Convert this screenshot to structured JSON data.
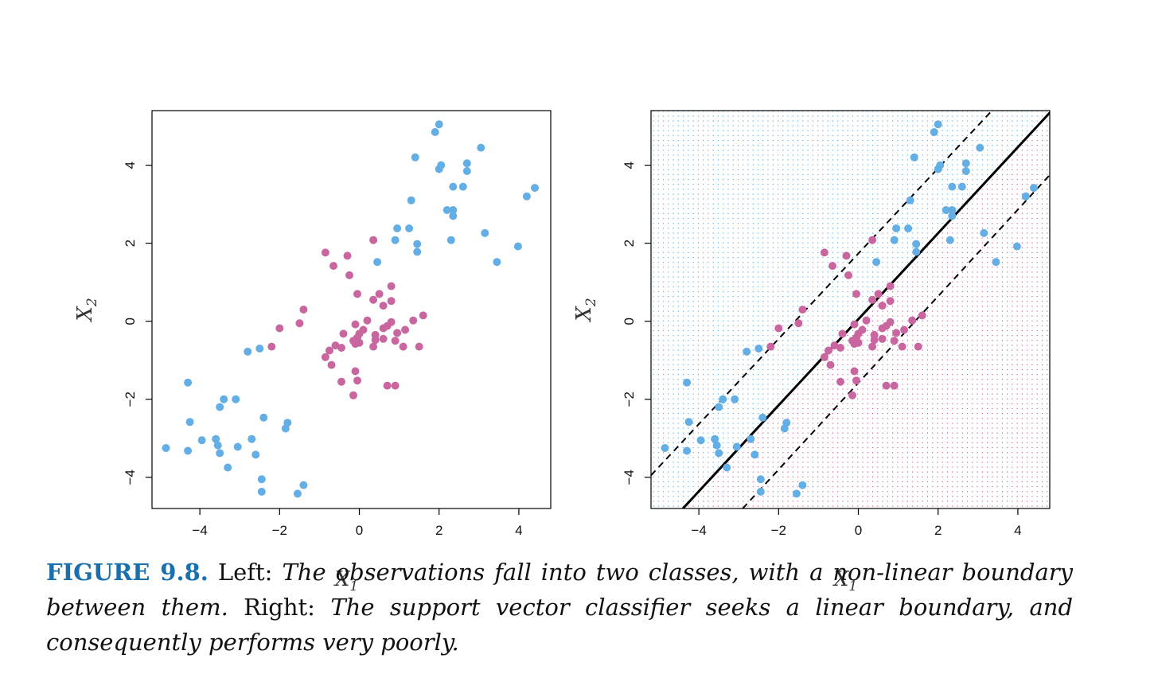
{
  "chart_data": [
    {
      "panel": "left",
      "type": "scatter",
      "xlabel": "X",
      "xlabel_sub": "1",
      "ylabel": "X",
      "ylabel_sub": "2",
      "xlim": [
        -5.2,
        4.8
      ],
      "ylim": [
        -4.8,
        5.4
      ],
      "xticks": [
        -4,
        -2,
        0,
        2,
        4
      ],
      "xtick_labels": [
        "−4",
        "−2",
        "0",
        "2",
        "4"
      ],
      "yticks": [
        -4,
        -2,
        0,
        2,
        4
      ],
      "ytick_labels": [
        "−4",
        "−2",
        "0",
        "2",
        "4"
      ],
      "grid": false,
      "legend": "none",
      "series": [
        {
          "class": "blue",
          "color": "#63aee5",
          "points": [
            [
              2.0,
              5.05
            ],
            [
              1.9,
              4.85
            ],
            [
              3.05,
              4.45
            ],
            [
              1.4,
              4.2
            ],
            [
              2.05,
              4.0
            ],
            [
              2.0,
              3.9
            ],
            [
              2.7,
              4.05
            ],
            [
              2.7,
              3.85
            ],
            [
              2.35,
              3.45
            ],
            [
              2.6,
              3.45
            ],
            [
              4.4,
              3.42
            ],
            [
              1.3,
              3.1
            ],
            [
              4.2,
              3.2
            ],
            [
              2.2,
              2.85
            ],
            [
              2.35,
              2.85
            ],
            [
              2.35,
              2.7
            ],
            [
              0.95,
              2.38
            ],
            [
              1.25,
              2.38
            ],
            [
              3.15,
              2.26
            ],
            [
              0.9,
              2.08
            ],
            [
              2.3,
              2.08
            ],
            [
              1.45,
              1.98
            ],
            [
              3.98,
              1.92
            ],
            [
              1.45,
              1.78
            ],
            [
              0.45,
              1.52
            ],
            [
              3.45,
              1.52
            ],
            [
              -2.5,
              -0.7
            ],
            [
              -2.8,
              -0.78
            ],
            [
              -4.3,
              -1.57
            ],
            [
              -3.4,
              -2.0
            ],
            [
              -3.1,
              -2.0
            ],
            [
              -3.5,
              -2.2
            ],
            [
              -2.4,
              -2.47
            ],
            [
              -4.25,
              -2.58
            ],
            [
              -1.8,
              -2.6
            ],
            [
              -1.85,
              -2.75
            ],
            [
              -3.95,
              -3.05
            ],
            [
              -3.6,
              -3.02
            ],
            [
              -2.7,
              -3.02
            ],
            [
              -3.55,
              -3.18
            ],
            [
              -4.85,
              -3.25
            ],
            [
              -3.05,
              -3.22
            ],
            [
              -4.3,
              -3.32
            ],
            [
              -3.5,
              -3.38
            ],
            [
              -2.6,
              -3.42
            ],
            [
              -3.3,
              -3.75
            ],
            [
              -2.45,
              -4.05
            ],
            [
              -1.4,
              -4.2
            ],
            [
              -2.45,
              -4.37
            ],
            [
              -1.55,
              -4.42
            ]
          ]
        },
        {
          "class": "purple",
          "color": "#c966a0",
          "points": [
            [
              0.35,
              2.08
            ],
            [
              -0.85,
              1.76
            ],
            [
              -0.3,
              1.68
            ],
            [
              -0.65,
              1.42
            ],
            [
              -0.25,
              1.18
            ],
            [
              0.8,
              0.9
            ],
            [
              -0.05,
              0.7
            ],
            [
              0.5,
              0.7
            ],
            [
              0.35,
              0.55
            ],
            [
              0.8,
              0.52
            ],
            [
              0.6,
              0.4
            ],
            [
              -1.4,
              0.3
            ],
            [
              1.6,
              0.15
            ],
            [
              1.35,
              0.02
            ],
            [
              0.2,
              0.02
            ],
            [
              -1.5,
              -0.05
            ],
            [
              0.8,
              -0.02
            ],
            [
              -0.1,
              -0.08
            ],
            [
              0.7,
              -0.12
            ],
            [
              0.6,
              -0.18
            ],
            [
              -2.0,
              -0.18
            ],
            [
              0.1,
              -0.22
            ],
            [
              1.15,
              -0.22
            ],
            [
              0.95,
              -0.3
            ],
            [
              0.0,
              -0.32
            ],
            [
              -0.4,
              -0.32
            ],
            [
              0.4,
              -0.35
            ],
            [
              -0.05,
              -0.42
            ],
            [
              0.6,
              -0.45
            ],
            [
              0.4,
              -0.48
            ],
            [
              0.9,
              -0.5
            ],
            [
              -0.15,
              -0.5
            ],
            [
              0.0,
              -0.55
            ],
            [
              -0.1,
              -0.58
            ],
            [
              -0.6,
              -0.62
            ],
            [
              -0.45,
              -0.68
            ],
            [
              0.35,
              -0.65
            ],
            [
              1.1,
              -0.65
            ],
            [
              1.5,
              -0.65
            ],
            [
              -2.2,
              -0.65
            ],
            [
              -0.75,
              -0.75
            ],
            [
              -0.85,
              -0.92
            ],
            [
              -0.7,
              -1.12
            ],
            [
              -0.1,
              -1.28
            ],
            [
              -0.45,
              -1.55
            ],
            [
              -0.05,
              -1.52
            ],
            [
              0.7,
              -1.65
            ],
            [
              0.9,
              -1.65
            ],
            [
              -0.15,
              -1.9
            ]
          ]
        }
      ]
    },
    {
      "panel": "right",
      "type": "scatter",
      "xlabel": "X",
      "xlabel_sub": "1",
      "ylabel": "X",
      "ylabel_sub": "2",
      "xlim": [
        -5.2,
        4.8
      ],
      "ylim": [
        -4.8,
        5.4
      ],
      "xticks": [
        -4,
        -2,
        0,
        2,
        4
      ],
      "xtick_labels": [
        "−4",
        "−2",
        "0",
        "2",
        "4"
      ],
      "yticks": [
        -4,
        -2,
        0,
        2,
        4
      ],
      "ytick_labels": [
        "−4",
        "−2",
        "0",
        "2",
        "4"
      ],
      "grid": false,
      "legend": "none",
      "background_grid": "dotted decision regions (blue above boundary, purple below)",
      "decision_boundary": {
        "style": "solid",
        "points": [
          [
            -4.4,
            -4.8
          ],
          [
            4.85,
            5.4
          ]
        ]
      },
      "margins": [
        {
          "style": "dashed",
          "points": [
            [
              -5.2,
              -3.95
            ],
            [
              3.35,
              5.4
            ]
          ]
        },
        {
          "style": "dashed",
          "points": [
            [
              -2.9,
              -4.8
            ],
            [
              4.8,
              3.75
            ]
          ]
        }
      ],
      "series_ref": "same observations as left panel"
    }
  ],
  "caption": {
    "label": "FIGURE 9.8.",
    "left_word": " Left: ",
    "left_text": "The observations fall into two classes, with a non-linear boundary between them.",
    "right_word": " Right: ",
    "right_text": "The support vector classifier seeks a linear boundary, and consequently performs very poorly."
  }
}
